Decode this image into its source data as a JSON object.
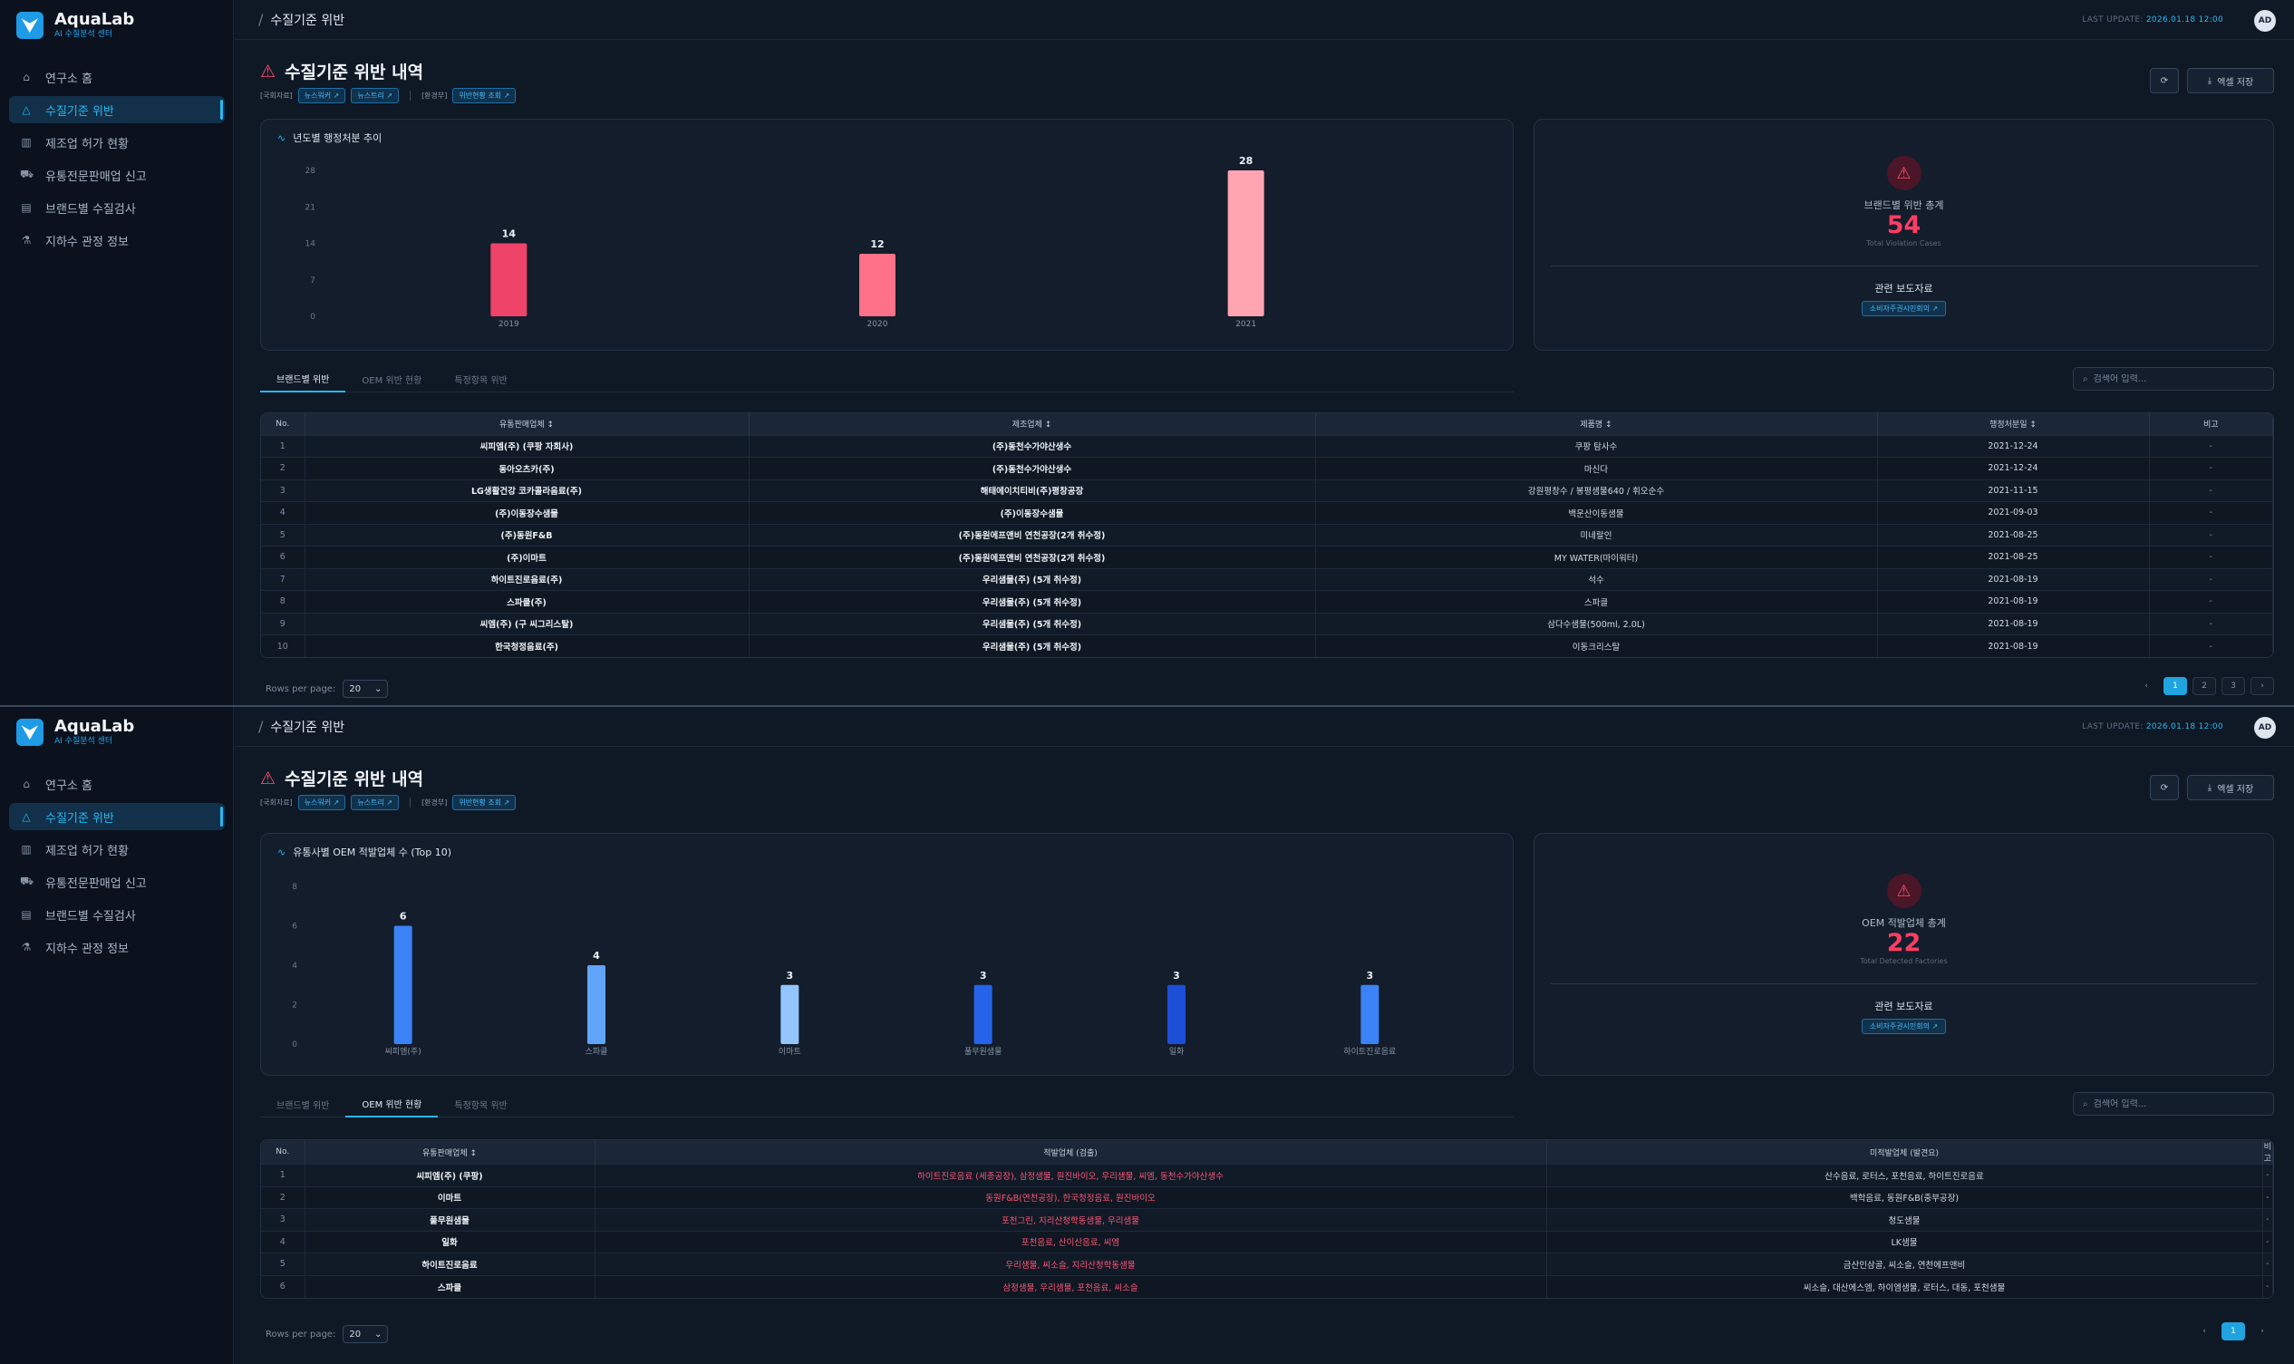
{
  "app": {
    "name": "AquaLab",
    "subtitle": "AI 수질분석 센터"
  },
  "nav": [
    {
      "label": "연구소 홈",
      "icon": "home-icon",
      "glyph": "⌂"
    },
    {
      "label": "수질기준 위반",
      "icon": "alert-triangle-icon",
      "glyph": "△"
    },
    {
      "label": "제조업 허가 현황",
      "icon": "building-icon",
      "glyph": "▥"
    },
    {
      "label": "유통전문판매업 신고",
      "icon": "truck-icon",
      "glyph": "⛟"
    },
    {
      "label": "브랜드별 수질검사",
      "icon": "clipboard-icon",
      "glyph": "▤"
    },
    {
      "label": "지하수 관정 정보",
      "icon": "flask-icon",
      "glyph": "⚗"
    }
  ],
  "header": {
    "breadcrumb_sep": "/",
    "breadcrumb": "수질기준 위반",
    "last_update_label": "LAST UPDATE",
    "last_update_value": "2026.01.18 12:00",
    "avatar": "AD"
  },
  "page": {
    "title": "수질기준 위반 내역",
    "source_label_1": "[국회자료]",
    "source_tag_1": "뉴스워커 ↗",
    "source_tag_2": "뉴스트리 ↗",
    "source_label_2": "[환경부]",
    "source_tag_3": "위반현황 조회 ↗",
    "excel_button": "엑셀 저장"
  },
  "screen1": {
    "chart_title": "년도별 행정처분 추이",
    "stats": {
      "label": "브랜드별 위반 총계",
      "value": "54",
      "sub": "Total Violation Cases",
      "press_label": "관련 보도자료",
      "press_tag": "소비자주권시민회의 ↗"
    },
    "tabs": [
      "브랜드별 위반",
      "OEM 위반 현황",
      "특정항목 위반"
    ],
    "search_placeholder": "검색어 입력...",
    "table": {
      "headers": [
        "No.",
        "유통판매업체 ↕",
        "제조업체 ↕",
        "제품명 ↕",
        "행정처분일 ↕",
        "비고"
      ],
      "rows": [
        [
          "1",
          "씨피엠(주) (쿠팡 자회사)",
          "(주)동천수가야산생수",
          "쿠팡 탐사수",
          "2021-12-24",
          "-"
        ],
        [
          "2",
          "동아오츠카(주)",
          "(주)동천수가야산생수",
          "마신다",
          "2021-12-24",
          "-"
        ],
        [
          "3",
          "LG생활건강 코카콜라음료(주)",
          "해태에이치티비(주)평창공장",
          "강원평창수 / 봉평샘물640 / 휘오순수",
          "2021-11-15",
          "-"
        ],
        [
          "4",
          "(주)이동장수샘물",
          "(주)이동장수샘물",
          "백운산이동샘물",
          "2021-09-03",
          "-"
        ],
        [
          "5",
          "(주)동원F&B",
          "(주)동원에프앤비 연천공장(2개 취수정)",
          "미네랄인",
          "2021-08-25",
          "-"
        ],
        [
          "6",
          "(주)이마트",
          "(주)동원에프앤비 연천공장(2개 취수정)",
          "MY WATER(마이워터)",
          "2021-08-25",
          "-"
        ],
        [
          "7",
          "하이트진로음료(주)",
          "우리샘물(주) (5개 취수정)",
          "석수",
          "2021-08-19",
          "-"
        ],
        [
          "8",
          "스파클(주)",
          "우리샘물(주) (5개 취수정)",
          "스파클",
          "2021-08-19",
          "-"
        ],
        [
          "9",
          "씨엠(주) (구 씨그리스탈)",
          "우리샘물(주) (5개 취수정)",
          "삼다수샘물(500ml, 2.0L)",
          "2021-08-19",
          "-"
        ],
        [
          "10",
          "한국청정음료(주)",
          "우리샘물(주) (5개 취수정)",
          "이동크리스탈",
          "2021-08-19",
          "-"
        ]
      ]
    },
    "rows_per_page_label": "Rows per page:",
    "rows_per_page_value": "20",
    "pages": [
      "1",
      "2",
      "3"
    ],
    "prev": "‹",
    "next": "›"
  },
  "screen2": {
    "chart_title": "유통사별 OEM 적발업체 수 (Top 10)",
    "stats": {
      "label": "OEM 적발업체 총계",
      "value": "22",
      "sub": "Total Detected Factories",
      "press_label": "관련 보도자료",
      "press_tag": "소비자주권시민회의 ↗"
    },
    "tabs": [
      "브랜드별 위반",
      "OEM 위반 현황",
      "특정항목 위반"
    ],
    "search_placeholder": "검색어 입력...",
    "table": {
      "headers": [
        "No.",
        "유통판매업체 ↕",
        "적발업체 (검출)",
        "미적발업체 (발견요)",
        "비고"
      ],
      "rows": [
        [
          "1",
          "씨피엠(주) (쿠팡)",
          "하이트진로음료 (세종공장), 삼정샘물, 원진바이오, 우리샘물, 씨엠, 동천수가야산생수",
          "산수음료, 로터스, 포천음료, 하이트진로음료",
          "-"
        ],
        [
          "2",
          "이마트",
          "동원F&B(연천공장), 한국청정음료, 원진바이오",
          "백학음료, 동원F&B(중부공장)",
          "-"
        ],
        [
          "3",
          "풀무원샘물",
          "포천그린, 지리산청학동샘물, 우리샘물",
          "청도샘물",
          "-"
        ],
        [
          "4",
          "일화",
          "포천음료, 산이산음료, 씨엠",
          "LK샘물",
          "-"
        ],
        [
          "5",
          "하이트진로음료",
          "우리샘물, 씨소슬, 지리산청학동샘물",
          "금산인삼골, 씨소슬, 연천에프앤비",
          "-"
        ],
        [
          "6",
          "스파클",
          "삼정샘물, 우리샘물, 포천음료, 씨소슬",
          "씨소슬, 대산에스엠, 하이엠샘물, 로터스, 대동, 포천샘물",
          "-"
        ]
      ]
    },
    "rows_per_page_label": "Rows per page:",
    "rows_per_page_value": "20",
    "pages": [
      "1"
    ],
    "prev": "‹",
    "next": "›"
  },
  "chart_data": [
    {
      "type": "bar",
      "title": "년도별 행정처분 추이",
      "categories": [
        "2019",
        "2020",
        "2021"
      ],
      "values": [
        14,
        12,
        28
      ],
      "ylim": [
        0,
        28
      ],
      "yticks": [
        0,
        7,
        14,
        21,
        28
      ],
      "colors": [
        "#f0436a",
        "#ff7089",
        "#ffa4b0"
      ],
      "grid": false
    },
    {
      "type": "bar",
      "title": "유통사별 OEM 적발업체 수 (Top 10)",
      "categories": [
        "씨피엠(주)",
        "스파클",
        "이마트",
        "풀무원샘물",
        "일화",
        "하이트진로음료"
      ],
      "values": [
        6,
        4,
        3,
        3,
        3,
        3
      ],
      "ylim": [
        0,
        8
      ],
      "yticks": [
        0,
        2,
        4,
        6,
        8
      ],
      "colors": [
        "#3b82f6",
        "#60a5fa",
        "#93c5fd",
        "#2563eb",
        "#1d4ed8",
        "#3b82f6"
      ],
      "grid": false
    }
  ]
}
